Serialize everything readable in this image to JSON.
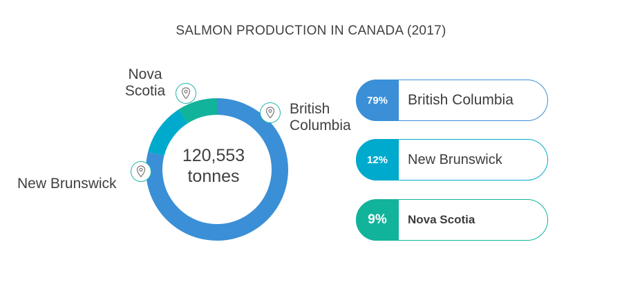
{
  "title": "SALMON PRODUCTION IN CANADA (2017)",
  "center": {
    "line1": "120,553",
    "line2": "tonnes"
  },
  "chart_data": {
    "type": "pie",
    "title": "SALMON PRODUCTION IN CANADA (2017)",
    "total": "120,553 tonnes",
    "categories": [
      "British Columbia",
      "New Brunswick",
      "Nova Scotia"
    ],
    "values": [
      79,
      12,
      9
    ],
    "unit": "%",
    "colors": [
      "#3a8fd6",
      "#00aacc",
      "#12b39b"
    ],
    "start_angle_deg": 0
  },
  "callouts": {
    "nova_scotia": {
      "line1": "Nova",
      "line2": "Scotia"
    },
    "british_columbia": {
      "line1": "British",
      "line2": "Columbia"
    },
    "new_brunswick": {
      "label": "New Brunswick"
    }
  },
  "legend": [
    {
      "pct": "79%",
      "name": "British Columbia",
      "color": "#3a8fd6"
    },
    {
      "pct": "12%",
      "name": "New Brunswick",
      "color": "#00aacc"
    },
    {
      "pct": "9%",
      "name": "Nova Scotia",
      "color": "#12b39b"
    }
  ],
  "icons": {
    "pin": "map-pin-icon"
  }
}
